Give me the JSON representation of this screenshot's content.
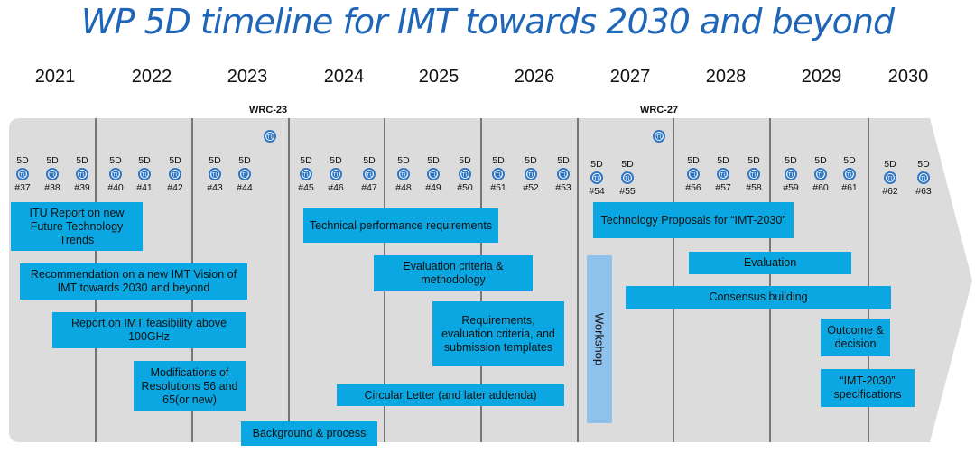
{
  "title": "WP 5D timeline for IMT towards 2030 and beyond",
  "years": [
    "2021",
    "2022",
    "2023",
    "2024",
    "2025",
    "2026",
    "2027",
    "2028",
    "2029",
    "2030"
  ],
  "wrc": [
    "WRC-23",
    "WRC-27"
  ],
  "meeting_prefix": "5D",
  "meetings": [
    "#37",
    "#38",
    "#39",
    "#40",
    "#41",
    "#42",
    "#43",
    "#44",
    "#45",
    "#46",
    "#47",
    "#48",
    "#49",
    "#50",
    "#51",
    "#52",
    "#53",
    "#54",
    "#55",
    "#56",
    "#57",
    "#58",
    "#59",
    "#60",
    "#61",
    "#62",
    "#63"
  ],
  "activities": {
    "itu_report": "ITU Report on new Future Technology Trends",
    "recommendation": "Recommendation on a new IMT Vision of IMT towards 2030 and beyond",
    "feasibility": "Report on IMT feasibility above 100GHz",
    "modifications": "Modifications of Resolutions 56 and 65(or new)",
    "background": "Background & process",
    "tech_perf": "Technical performance requirements",
    "eval_criteria": "Evaluation criteria & methodology",
    "requirements": "Requirements, evaluation criteria, and submission templates",
    "circular": "Circular Letter (and later addenda)",
    "workshop": "Workshop",
    "tech_proposals": "Technology Proposals for “IMT-2030”",
    "evaluation": "Evaluation",
    "consensus": "Consensus building",
    "outcome": "Outcome & decision",
    "specs": "“IMT-2030” specifications"
  },
  "colors": {
    "box": "#0aa7e3",
    "workshop": "#8ec1ec",
    "title": "#1f66b8",
    "band": "#dcdcdc",
    "icon": "#2f76c4"
  }
}
